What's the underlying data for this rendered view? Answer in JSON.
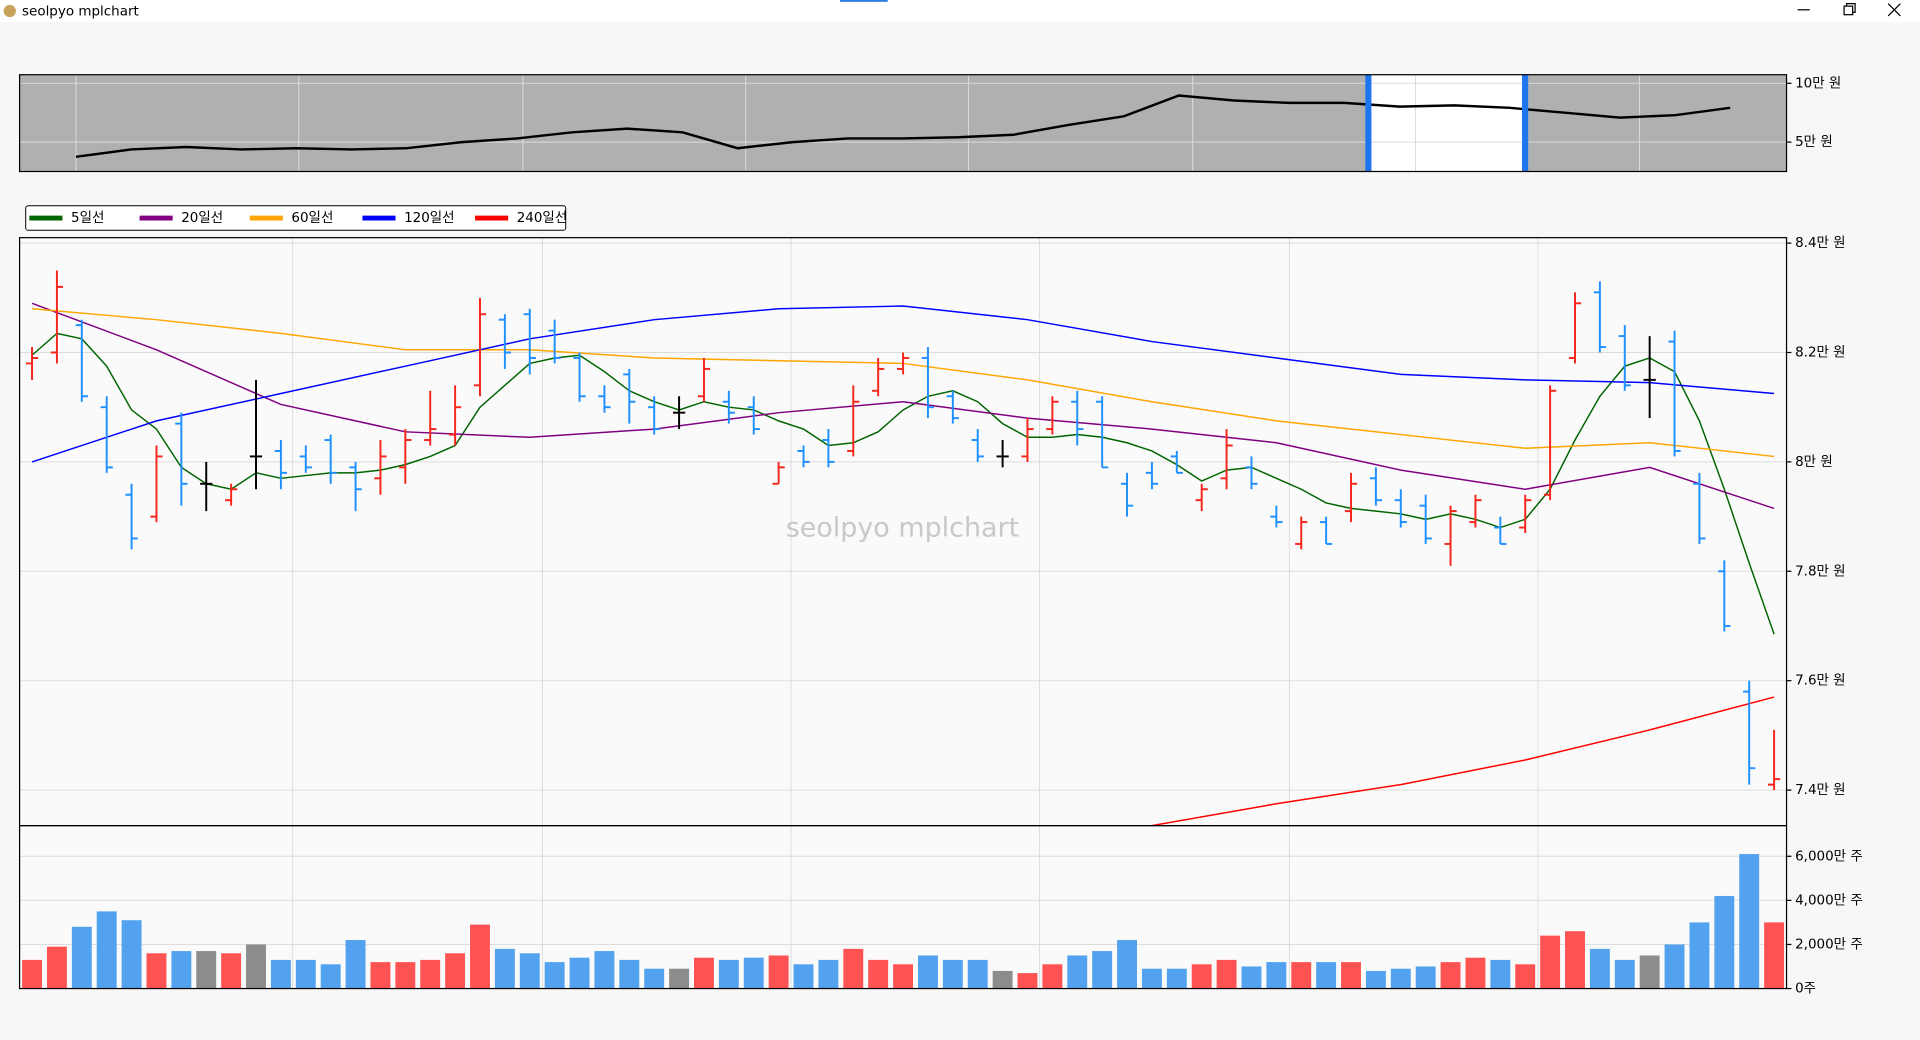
{
  "window": {
    "title": "seolpyo mplchart"
  },
  "chart_data": [
    {
      "type": "line",
      "color": "#000000",
      "values": [
        37500,
        43750,
        45850,
        43750,
        44800,
        43750,
        44800,
        50000,
        53100,
        58300,
        61450,
        58300,
        44800,
        50000,
        53100,
        53100,
        54150,
        56250,
        64600,
        71900,
        89600,
        85400,
        83350,
        83350,
        80200,
        81250,
        79150,
        75000,
        70800,
        72900,
        79150
      ],
      "ylim": [
        25000,
        107300
      ],
      "yticks": [
        {
          "value": 100000,
          "label": "10만 원"
        },
        {
          "value": 50000,
          "label": "5만 원"
        }
      ],
      "grid": true
    },
    {
      "type": "ohlc",
      "watermark": "seolpyo mplchart",
      "legend": "upper left",
      "grid": true,
      "up_color": "#f5261b",
      "down_color": "#1e90ff",
      "flat_color": "#000000",
      "open": [
        81800,
        82000,
        82500,
        81000,
        79400,
        79000,
        80700,
        79600,
        79300,
        80100,
        80200,
        80100,
        80400,
        79900,
        79700,
        79900,
        80400,
        80500,
        81400,
        82600,
        82700,
        82400,
        81900,
        81200,
        81600,
        81000,
        80900,
        81200,
        81100,
        81000,
        79600,
        80200,
        80400,
        80200,
        81300,
        81700,
        81900,
        81200,
        80400,
        80100,
        80100,
        80600,
        81100,
        81100,
        79600,
        79800,
        80100,
        79300,
        79700,
        79900,
        79000,
        78500,
        78900,
        79100,
        79700,
        79300,
        79200,
        78500,
        78900,
        78800,
        78800,
        79400,
        81900,
        83100,
        82300,
        81500,
        82200,
        79600,
        78000,
        75800,
        74100
      ],
      "high": [
        82100,
        83500,
        82600,
        81200,
        79600,
        80300,
        80900,
        80000,
        79600,
        81500,
        80400,
        80300,
        80500,
        80000,
        80400,
        80600,
        81300,
        81400,
        83000,
        82700,
        82800,
        82600,
        82000,
        81400,
        81700,
        81200,
        81200,
        81900,
        81300,
        81200,
        80000,
        80300,
        80600,
        81400,
        81900,
        82000,
        82100,
        81300,
        80600,
        80400,
        80800,
        81200,
        81300,
        81200,
        79800,
        80000,
        80200,
        79600,
        80600,
        80100,
        79200,
        79000,
        79000,
        79800,
        79900,
        79500,
        79400,
        79200,
        79400,
        79000,
        79400,
        81400,
        83100,
        83300,
        82500,
        82300,
        82400,
        79800,
        78200,
        76000,
        75100
      ],
      "low": [
        81500,
        81800,
        81100,
        79800,
        78400,
        78900,
        79200,
        79100,
        79200,
        79500,
        79500,
        79800,
        79600,
        79100,
        79400,
        79600,
        80300,
        80300,
        81200,
        81700,
        81600,
        81800,
        81100,
        80900,
        80700,
        80500,
        80600,
        81100,
        80700,
        80500,
        79600,
        79900,
        79900,
        80100,
        81200,
        81600,
        80800,
        80700,
        80000,
        79900,
        80000,
        80500,
        80300,
        79900,
        79000,
        79500,
        79800,
        79100,
        79500,
        79500,
        78800,
        78400,
        78500,
        78900,
        79200,
        78800,
        78500,
        78100,
        78800,
        78500,
        78700,
        79300,
        81800,
        82000,
        81300,
        80800,
        80100,
        78500,
        76900,
        74100,
        74000
      ],
      "close": [
        81900,
        83200,
        81200,
        79900,
        78600,
        80100,
        79600,
        79600,
        79500,
        80100,
        79800,
        79900,
        79800,
        79500,
        80100,
        80400,
        80600,
        81000,
        82700,
        82000,
        81900,
        81900,
        81200,
        81000,
        81100,
        80600,
        80900,
        81700,
        80900,
        80600,
        79900,
        80000,
        80000,
        81100,
        81700,
        81900,
        81000,
        80800,
        80100,
        80100,
        80600,
        81100,
        80600,
        79900,
        79200,
        79600,
        79800,
        79500,
        80300,
        79600,
        78900,
        78900,
        78500,
        79600,
        79300,
        78900,
        78600,
        79100,
        79300,
        78500,
        79300,
        81300,
        82900,
        82100,
        81400,
        81500,
        80200,
        78600,
        77000,
        74400,
        74200
      ],
      "series": [
        {
          "name": "5일선",
          "color": "#006400",
          "values": [
            81950,
            82350,
            82250,
            81750,
            80950,
            80600,
            79900,
            79600,
            79500,
            79800,
            79700,
            79750,
            79800,
            79800,
            79850,
            79950,
            80100,
            80300,
            81000,
            81400,
            81800,
            81900,
            81950,
            81650,
            81300,
            81100,
            80950,
            81100,
            81000,
            80950,
            80750,
            80600,
            80300,
            80350,
            80550,
            80950,
            81200,
            81300,
            81100,
            80700,
            80450,
            80450,
            80500,
            80450,
            80350,
            80200,
            79950,
            79650,
            79850,
            79900,
            79700,
            79500,
            79250,
            79150,
            79100,
            79050,
            78950,
            79050,
            78950,
            78800,
            78950,
            79500,
            80400,
            81200,
            81750,
            81900,
            81650,
            80750,
            79500,
            78150,
            76850
          ]
        },
        {
          "name": "20일선",
          "color": "#800080",
          "x": [
            0,
            5,
            10,
            15,
            20,
            25,
            30,
            35,
            40,
            45,
            50,
            55,
            60,
            65,
            70
          ],
          "values": [
            82900,
            82050,
            81050,
            80550,
            80450,
            80600,
            80900,
            81100,
            80800,
            80600,
            80350,
            79850,
            79500,
            79900,
            79150
          ]
        },
        {
          "name": "60일선",
          "color": "#ffa500",
          "x": [
            0,
            5,
            10,
            15,
            20,
            25,
            30,
            35,
            40,
            45,
            50,
            55,
            60,
            65,
            70
          ],
          "values": [
            82800,
            82600,
            82350,
            82050,
            82050,
            81900,
            81850,
            81800,
            81500,
            81100,
            80750,
            80500,
            80250,
            80350,
            80100
          ]
        },
        {
          "name": "120일선",
          "color": "#0000ff",
          "x": [
            0,
            5,
            10,
            15,
            20,
            25,
            30,
            35,
            40,
            45,
            50,
            55,
            60,
            65,
            70
          ],
          "values": [
            80000,
            80750,
            81250,
            81750,
            82250,
            82600,
            82800,
            82850,
            82600,
            82200,
            81900,
            81600,
            81500,
            81450,
            81250
          ]
        },
        {
          "name": "240일선",
          "color": "#ff0000",
          "x": [
            45,
            50,
            55,
            60,
            65,
            70
          ],
          "values": [
            73350,
            73750,
            74100,
            74550,
            75100,
            75700
          ]
        }
      ],
      "ylim": [
        73350,
        84100
      ],
      "yticks": [
        {
          "value": 74000,
          "label": "7.4만 원"
        },
        {
          "value": 76000,
          "label": "7.6만 원"
        },
        {
          "value": 78000,
          "label": "7.8만 원"
        },
        {
          "value": 80000,
          "label": "8만 원"
        },
        {
          "value": 82000,
          "label": "8.2만 원"
        },
        {
          "value": 84000,
          "label": "8.4만 원"
        }
      ]
    },
    {
      "type": "bar",
      "grid": true,
      "up_color": "#ff5252",
      "down_color": "#52a2f0",
      "flat_color": "#8c8c8c",
      "values": [
        13000000,
        19000000,
        28000000,
        35000000,
        31000000,
        16000000,
        17000000,
        17000000,
        16000000,
        20000000,
        13000000,
        13000000,
        11000000,
        22000000,
        12000000,
        12000000,
        13000000,
        16000000,
        29000000,
        18000000,
        16000000,
        12000000,
        14000000,
        17000000,
        13000000,
        9000000,
        9000000,
        14000000,
        13000000,
        14000000,
        15000000,
        11000000,
        13000000,
        18000000,
        13000000,
        11000000,
        15000000,
        13000000,
        13000000,
        8000000,
        7000000,
        11000000,
        15000000,
        17000000,
        22000000,
        9000000,
        9000000,
        11000000,
        13000000,
        10000000,
        12000000,
        12000000,
        12000000,
        12000000,
        8000000,
        9000000,
        10000000,
        12000000,
        14000000,
        13000000,
        11000000,
        24000000,
        26000000,
        18000000,
        13000000,
        15000000,
        20000000,
        30000000,
        42000000,
        61000000,
        30000000
      ],
      "ylim": [
        0,
        73900000
      ],
      "yticks": [
        {
          "value": 0,
          "label": "0주"
        },
        {
          "value": 20000000,
          "label": "2,000만 주"
        },
        {
          "value": 40000000,
          "label": "4,000만 주"
        },
        {
          "value": 60000000,
          "label": "6,000만 주"
        }
      ]
    }
  ]
}
